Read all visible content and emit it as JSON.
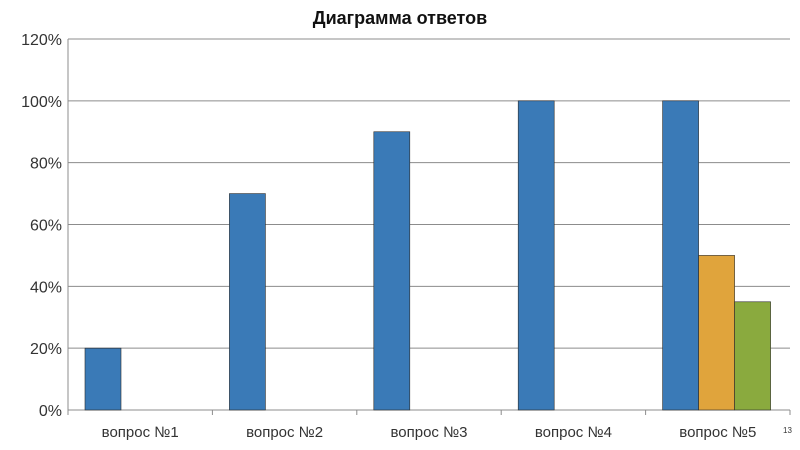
{
  "chart_data": {
    "type": "bar",
    "title": "Диаграмма ответов",
    "xlabel": "",
    "ylabel": "",
    "categories": [
      "вопрос №1",
      "вопрос №2",
      "вопрос №3",
      "вопрос №4",
      "вопрос №5"
    ],
    "series": [
      {
        "values": [
          20,
          0,
          0,
          0,
          0
        ],
        "color": "#3a7ab7"
      },
      {
        "values": [
          0,
          70,
          90,
          100,
          100
        ],
        "color": "#3a7ab7"
      },
      {
        "values": [
          0,
          0,
          0,
          0,
          50
        ],
        "color": "#e0a43c"
      },
      {
        "values": [
          0,
          0,
          0,
          0,
          35
        ],
        "color": "#8aaa3e"
      }
    ],
    "y_ticks": [
      "0%",
      "20%",
      "40%",
      "60%",
      "80%",
      "100%",
      "120%"
    ],
    "ylim": [
      0,
      120
    ],
    "y_unit": "%",
    "grid": true,
    "legend": "none"
  },
  "page_number": "13"
}
